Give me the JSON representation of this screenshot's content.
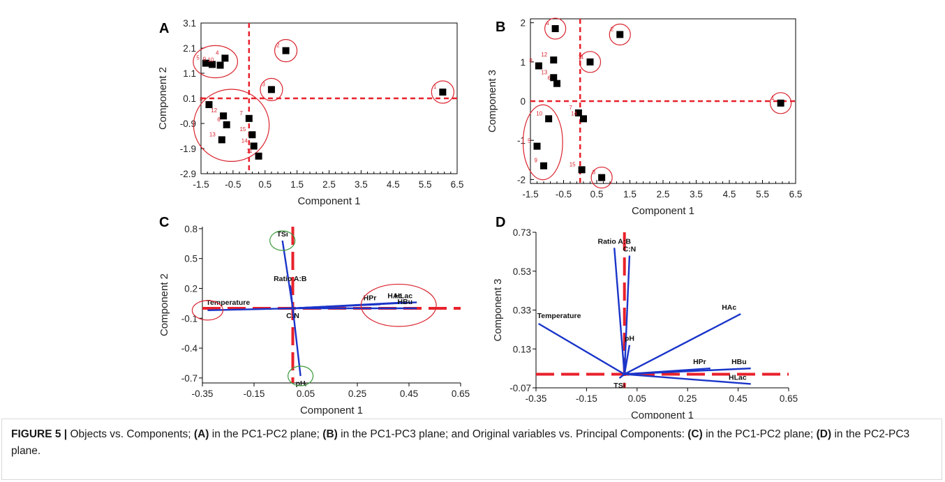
{
  "figure": {
    "caption_label": "FIGURE 5 |",
    "caption_parts": [
      {
        "t": " Objects vs. Components; ",
        "b": false
      },
      {
        "t": "(A)",
        "b": true
      },
      {
        "t": " in the PC1-PC2 plane; ",
        "b": false
      },
      {
        "t": "(B)",
        "b": true
      },
      {
        "t": " in the PC1-PC3 plane; and Original variables vs. Principal Components: ",
        "b": false
      },
      {
        "t": "(C)",
        "b": true
      },
      {
        "t": " in the PC1-PC2 plane; ",
        "b": false
      },
      {
        "t": "(D)",
        "b": true
      },
      {
        "t": " in the PC2-PC3 plane.",
        "b": false
      }
    ]
  },
  "colors": {
    "points": "#000000",
    "vectors": "#1a35c9",
    "dashed": "#e8212b",
    "red_circle": "#d9232d",
    "green_circle": "#3a9a3a",
    "point_label": "#d9232d"
  },
  "chart_data": [
    {
      "panel": "A",
      "type": "scatter",
      "xlabel": "Component 1",
      "ylabel": "Component 2",
      "xlim": [
        -1.5,
        6.5
      ],
      "ylim": [
        -2.9,
        3.1
      ],
      "xticks": [
        "-1.5",
        "-0.5",
        "0.5",
        "1.5",
        "2.5",
        "3.5",
        "4.5",
        "5.5",
        "6.5"
      ],
      "yticks": [
        "3.1",
        "2.1",
        "1.1",
        "0.1",
        "-0.9",
        "-1.9",
        "-2.9"
      ],
      "ref_lines": {
        "x": 0.0,
        "y": 0.1
      },
      "points": [
        {
          "label": "1",
          "x": 6.05,
          "y": 0.35
        },
        {
          "label": "2",
          "x": 1.15,
          "y": 2.0
        },
        {
          "label": "3",
          "x": 0.7,
          "y": 0.45
        },
        {
          "label": "4",
          "x": -0.75,
          "y": 1.7
        },
        {
          "label": "5",
          "x": -1.35,
          "y": 1.5
        },
        {
          "label": "9",
          "x": -1.15,
          "y": 1.45
        },
        {
          "label": "10",
          "x": -0.9,
          "y": 1.42
        },
        {
          "label": "8",
          "x": -1.25,
          "y": -0.15
        },
        {
          "label": "12",
          "x": -0.8,
          "y": -0.6
        },
        {
          "label": "6",
          "x": -0.7,
          "y": -0.95
        },
        {
          "label": "13",
          "x": -0.85,
          "y": -1.55
        },
        {
          "label": "7",
          "x": 0.0,
          "y": -0.7
        },
        {
          "label": "15",
          "x": 0.1,
          "y": -1.35
        },
        {
          "label": "14",
          "x": 0.15,
          "y": -1.8
        },
        {
          "label": "11",
          "x": 0.3,
          "y": -2.2
        }
      ]
    },
    {
      "panel": "B",
      "type": "scatter",
      "xlabel": "Component 1",
      "ylabel": "Component 3",
      "xlim": [
        -1.5,
        6.5
      ],
      "ylim": [
        -2.1,
        2.1
      ],
      "xticks": [
        "-1.5",
        "-0.5",
        "0.5",
        "1.5",
        "2.5",
        "3.5",
        "4.5",
        "5.5",
        "6.5"
      ],
      "yticks": [
        "2",
        "1",
        "0",
        "-1",
        "-2"
      ],
      "ref_lines": {
        "x": 0.0,
        "y": 0.0
      },
      "points": [
        {
          "label": "1",
          "x": 6.05,
          "y": -0.05
        },
        {
          "label": "2",
          "x": 1.2,
          "y": 1.7
        },
        {
          "label": "3",
          "x": 0.65,
          "y": -1.95
        },
        {
          "label": "4",
          "x": -0.75,
          "y": 1.85
        },
        {
          "label": "5",
          "x": -1.3,
          "y": -1.15
        },
        {
          "label": "6",
          "x": -0.7,
          "y": 0.45
        },
        {
          "label": "7",
          "x": -0.05,
          "y": -0.3
        },
        {
          "label": "8",
          "x": -1.25,
          "y": 0.9
        },
        {
          "label": "9",
          "x": -1.1,
          "y": -1.65
        },
        {
          "label": "10",
          "x": -0.95,
          "y": -0.45
        },
        {
          "label": "11",
          "x": 0.3,
          "y": 1.0
        },
        {
          "label": "12",
          "x": -0.8,
          "y": 1.05
        },
        {
          "label": "13",
          "x": -0.8,
          "y": 0.6
        },
        {
          "label": "14",
          "x": 0.1,
          "y": -0.45
        },
        {
          "label": "15",
          "x": 0.05,
          "y": -1.75
        }
      ]
    },
    {
      "panel": "C",
      "type": "biplot",
      "xlabel": "Component 1",
      "ylabel": "Component 2",
      "xlim": [
        -0.35,
        0.65
      ],
      "ylim": [
        -0.75,
        0.82
      ],
      "xticks": [
        "-0.35",
        "-0.15",
        "0.05",
        "0.25",
        "0.45",
        "0.65"
      ],
      "yticks": [
        "0.8",
        "0.5",
        "0.2",
        "-0.1",
        "-0.4",
        "-0.7"
      ],
      "origin": [
        0.0,
        0.0
      ],
      "vectors": [
        {
          "label": "TSi",
          "x": -0.04,
          "y": 0.68
        },
        {
          "label": "Ratio A:B",
          "x": -0.01,
          "y": 0.23
        },
        {
          "label": "Temperature",
          "x": -0.33,
          "y": -0.02
        },
        {
          "label": "C:N",
          "x": 0.0,
          "y": 0.0
        },
        {
          "label": "pH",
          "x": 0.03,
          "y": -0.68
        },
        {
          "label": "HPr",
          "x": 0.34,
          "y": 0.04
        },
        {
          "label": "HAc",
          "x": 0.44,
          "y": 0.06
        },
        {
          "label": "HLac",
          "x": 0.48,
          "y": 0.06
        },
        {
          "label": "HBu",
          "x": 0.48,
          "y": 0.0
        }
      ]
    },
    {
      "panel": "D",
      "type": "biplot",
      "xlabel": "Component 1",
      "ylabel": "Component 3",
      "xlim": [
        -0.35,
        0.65
      ],
      "ylim": [
        -0.07,
        0.73
      ],
      "xticks": [
        "-0.35",
        "-0.15",
        "0.05",
        "0.25",
        "0.45",
        "0.65"
      ],
      "yticks": [
        "0.73",
        "0.53",
        "0.33",
        "0.13",
        "-0.07"
      ],
      "origin": [
        0.0,
        0.0
      ],
      "vectors": [
        {
          "label": "Ratio A:B",
          "x": -0.04,
          "y": 0.65
        },
        {
          "label": "C:N",
          "x": 0.02,
          "y": 0.61
        },
        {
          "label": "Temperature",
          "x": -0.34,
          "y": 0.26
        },
        {
          "label": "pH",
          "x": 0.02,
          "y": 0.15
        },
        {
          "label": "HAc",
          "x": 0.46,
          "y": 0.31
        },
        {
          "label": "HPr",
          "x": 0.34,
          "y": 0.03
        },
        {
          "label": "HBu",
          "x": 0.5,
          "y": 0.03
        },
        {
          "label": "HLac",
          "x": 0.5,
          "y": -0.05
        },
        {
          "label": "TSi",
          "x": -0.02,
          "y": -0.02
        }
      ]
    }
  ]
}
